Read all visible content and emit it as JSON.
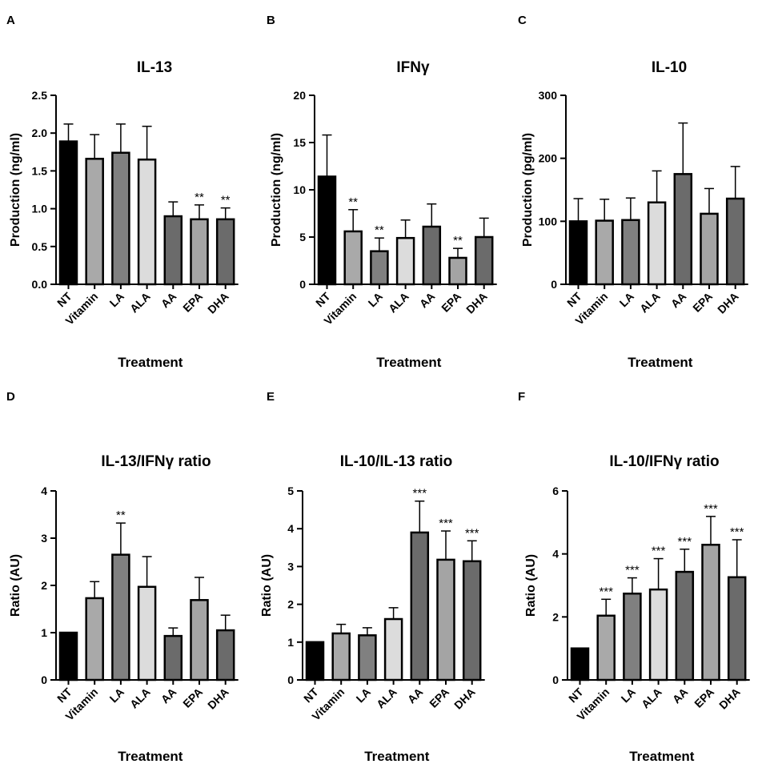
{
  "figure": {
    "treatment_colors": {
      "NT": "#000000",
      "Vitamin": "#a9a9a9",
      "LA": "#808080",
      "ALA": "#dcdcdc",
      "AA": "#6b6b6b",
      "EPA": "#a4a4a4",
      "DHA": "#6b6b6b"
    }
  },
  "chart_data": [
    {
      "panel": "A",
      "type": "bar",
      "title": "IL-13",
      "xlabel": "Treatment",
      "ylabel": "Production (ng/ml)",
      "ylim": [
        0,
        2.5
      ],
      "yticks": [
        "0.0",
        "0.5",
        "1.0",
        "1.5",
        "2.0",
        "2.5"
      ],
      "categories": [
        "NT",
        "Vitamin",
        "LA",
        "ALA",
        "AA",
        "EPA",
        "DHA"
      ],
      "values": [
        1.89,
        1.66,
        1.74,
        1.65,
        0.9,
        0.86,
        0.86
      ],
      "errors": [
        0.23,
        0.32,
        0.38,
        0.44,
        0.19,
        0.19,
        0.15
      ],
      "significance": [
        "",
        "",
        "",
        "",
        "",
        "**",
        "**"
      ]
    },
    {
      "panel": "B",
      "type": "bar",
      "title": "IFNγ",
      "xlabel": "Treatment",
      "ylabel": "Production (ng/ml)",
      "ylim": [
        0,
        20
      ],
      "yticks": [
        "0",
        "5",
        "10",
        "15",
        "20"
      ],
      "categories": [
        "NT",
        "Vitamin",
        "LA",
        "ALA",
        "AA",
        "EPA",
        "DHA"
      ],
      "values": [
        11.4,
        5.6,
        3.5,
        4.9,
        6.1,
        2.8,
        5.0
      ],
      "errors": [
        4.4,
        2.3,
        1.4,
        1.9,
        2.4,
        1.0,
        2.0
      ],
      "significance": [
        "",
        "**",
        "**",
        "",
        "",
        "**",
        ""
      ]
    },
    {
      "panel": "C",
      "type": "bar",
      "title": "IL-10",
      "xlabel": "Treatment",
      "ylabel": "Production (pg/ml)",
      "ylim": [
        0,
        300
      ],
      "yticks": [
        "0",
        "100",
        "200",
        "300"
      ],
      "categories": [
        "NT",
        "Vitamin",
        "LA",
        "ALA",
        "AA",
        "EPA",
        "DHA"
      ],
      "values": [
        100,
        101,
        102,
        130,
        175,
        112,
        136
      ],
      "errors": [
        36,
        34,
        35,
        50,
        81,
        40,
        51
      ],
      "significance": [
        "",
        "",
        "",
        "",
        "",
        "",
        ""
      ]
    },
    {
      "panel": "D",
      "type": "bar",
      "title": "IL-13/IFNγ ratio",
      "xlabel": "Treatment",
      "ylabel": "Ratio (AU)",
      "ylim": [
        0,
        4
      ],
      "yticks": [
        "0",
        "1",
        "2",
        "3",
        "4"
      ],
      "categories": [
        "NT",
        "Vitamin",
        "LA",
        "ALA",
        "AA",
        "EPA",
        "DHA"
      ],
      "values": [
        1.0,
        1.73,
        2.65,
        1.97,
        0.93,
        1.69,
        1.05
      ],
      "errors": [
        0,
        0.35,
        0.67,
        0.64,
        0.17,
        0.48,
        0.32
      ],
      "significance": [
        "",
        "",
        "**",
        "",
        "",
        "",
        ""
      ]
    },
    {
      "panel": "E",
      "type": "bar",
      "title": "IL-10/IL-13 ratio",
      "xlabel": "Treatment",
      "ylabel": "Ratio (AU)",
      "ylim": [
        0,
        5
      ],
      "yticks": [
        "0",
        "1",
        "2",
        "3",
        "4",
        "5"
      ],
      "categories": [
        "NT",
        "Vitamin",
        "LA",
        "ALA",
        "AA",
        "EPA",
        "DHA"
      ],
      "values": [
        1.0,
        1.23,
        1.18,
        1.61,
        3.9,
        3.18,
        3.14
      ],
      "errors": [
        0,
        0.24,
        0.2,
        0.3,
        0.83,
        0.76,
        0.54
      ],
      "significance": [
        "",
        "",
        "",
        "",
        "***",
        "***",
        "***"
      ]
    },
    {
      "panel": "F",
      "type": "bar",
      "title": "IL-10/IFNγ ratio",
      "xlabel": "Treatment",
      "ylabel": "Ratio (AU)",
      "ylim": [
        0,
        6
      ],
      "yticks": [
        "0",
        "2",
        "4",
        "6"
      ],
      "categories": [
        "NT",
        "Vitamin",
        "LA",
        "ALA",
        "AA",
        "EPA",
        "DHA"
      ],
      "values": [
        1.0,
        2.04,
        2.74,
        2.87,
        3.43,
        4.29,
        3.26
      ],
      "errors": [
        0,
        0.52,
        0.5,
        0.98,
        0.72,
        0.9,
        1.19
      ],
      "significance": [
        "",
        "***",
        "***",
        "***",
        "***",
        "***",
        "***"
      ]
    }
  ]
}
